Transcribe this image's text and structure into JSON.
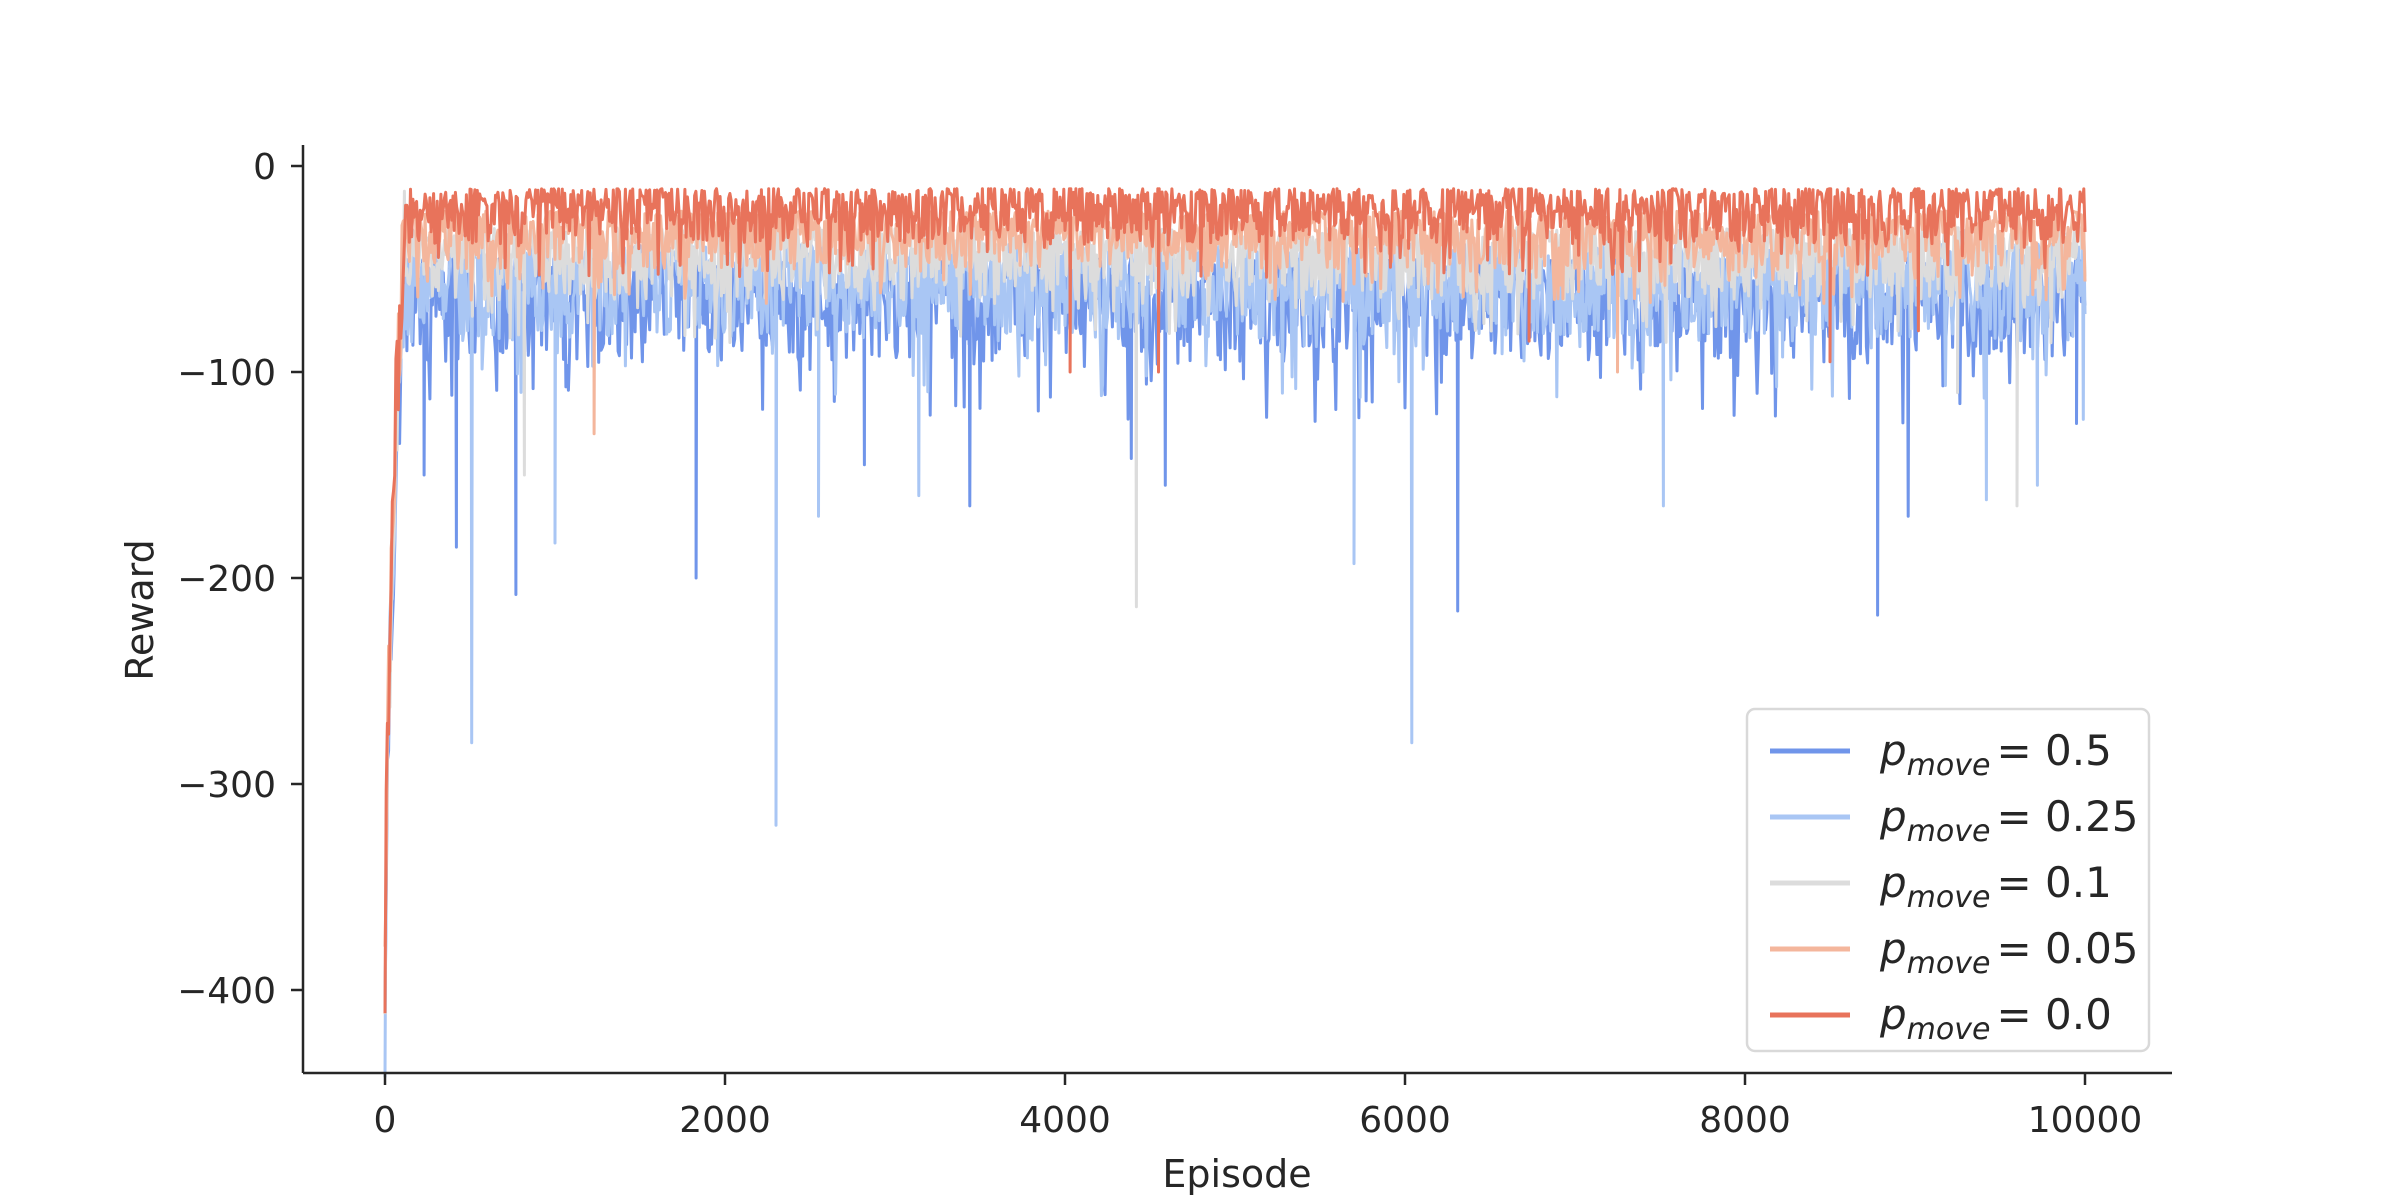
{
  "chart_data": {
    "type": "line",
    "title": "",
    "xlabel": "Episode",
    "ylabel": "Reward",
    "xlim": [
      -500,
      10500
    ],
    "ylim": [
      -440,
      10
    ],
    "x_ticks": [
      0,
      2000,
      4000,
      6000,
      8000,
      10000
    ],
    "y_ticks": [
      0,
      -100,
      -200,
      -300,
      -400
    ],
    "x_tick_labels": [
      "0",
      "2000",
      "4000",
      "6000",
      "8000",
      "10000"
    ],
    "y_tick_labels": [
      "0",
      "−100",
      "−200",
      "−300",
      "−400"
    ],
    "grid": false,
    "legend_placement": "lower-right",
    "episodes": 10000,
    "series": [
      {
        "name": "p_move = 0.5",
        "legend_prefix": "p",
        "legend_sub": "move",
        "legend_value": "= 0.5",
        "color": "#7095ea",
        "start_value": -420,
        "plateau_upper": -45,
        "plateau_lower": -95,
        "spikes": [
          [
            230,
            -150
          ],
          [
            420,
            -185
          ],
          [
            770,
            -208
          ],
          [
            1830,
            -200
          ],
          [
            2820,
            -145
          ],
          [
            3440,
            -165
          ],
          [
            4390,
            -142
          ],
          [
            4590,
            -155
          ],
          [
            6310,
            -216
          ],
          [
            8780,
            -218
          ],
          [
            8960,
            -170
          ],
          [
            9950,
            -125
          ]
        ]
      },
      {
        "name": "p_move = 0.25",
        "legend_prefix": "p",
        "legend_sub": "move",
        "legend_value": "= 0.25",
        "color": "#a9c6f4",
        "start_value": -418,
        "plateau_upper": -38,
        "plateau_lower": -85,
        "spikes": [
          [
            510,
            -280
          ],
          [
            2300,
            -320
          ],
          [
            1000,
            -183
          ],
          [
            2550,
            -170
          ],
          [
            3140,
            -160
          ],
          [
            5700,
            -193
          ],
          [
            6040,
            -280
          ],
          [
            7520,
            -165
          ],
          [
            9420,
            -162
          ],
          [
            9720,
            -155
          ],
          [
            9990,
            -123
          ]
        ]
      },
      {
        "name": "p_move = 0.1",
        "legend_prefix": "p",
        "legend_sub": "move",
        "legend_value": "= 0.1",
        "color": "#dcdcdc",
        "start_value": -410,
        "plateau_upper": -30,
        "plateau_lower": -65,
        "spikes": [
          [
            820,
            -150
          ],
          [
            4420,
            -214
          ],
          [
            9600,
            -165
          ],
          [
            9250,
            -110
          ]
        ]
      },
      {
        "name": "p_move = 0.05",
        "legend_prefix": "p",
        "legend_sub": "move",
        "legend_value": "= 0.05",
        "color": "#f4b69c",
        "start_value": -400,
        "plateau_upper": -22,
        "plateau_lower": -50,
        "spikes": [
          [
            1230,
            -130
          ],
          [
            7250,
            -100
          ]
        ]
      },
      {
        "name": "p_move = 0.0",
        "legend_prefix": "p",
        "legend_sub": "move",
        "legend_value": "= 0.0",
        "color": "#e8735b",
        "start_value": -395,
        "plateau_upper": -11,
        "plateau_lower": -38,
        "spikes": [
          [
            4030,
            -100
          ],
          [
            4550,
            -100
          ],
          [
            8500,
            -95
          ],
          [
            9020,
            -80
          ],
          [
            6730,
            -85
          ]
        ]
      }
    ]
  }
}
